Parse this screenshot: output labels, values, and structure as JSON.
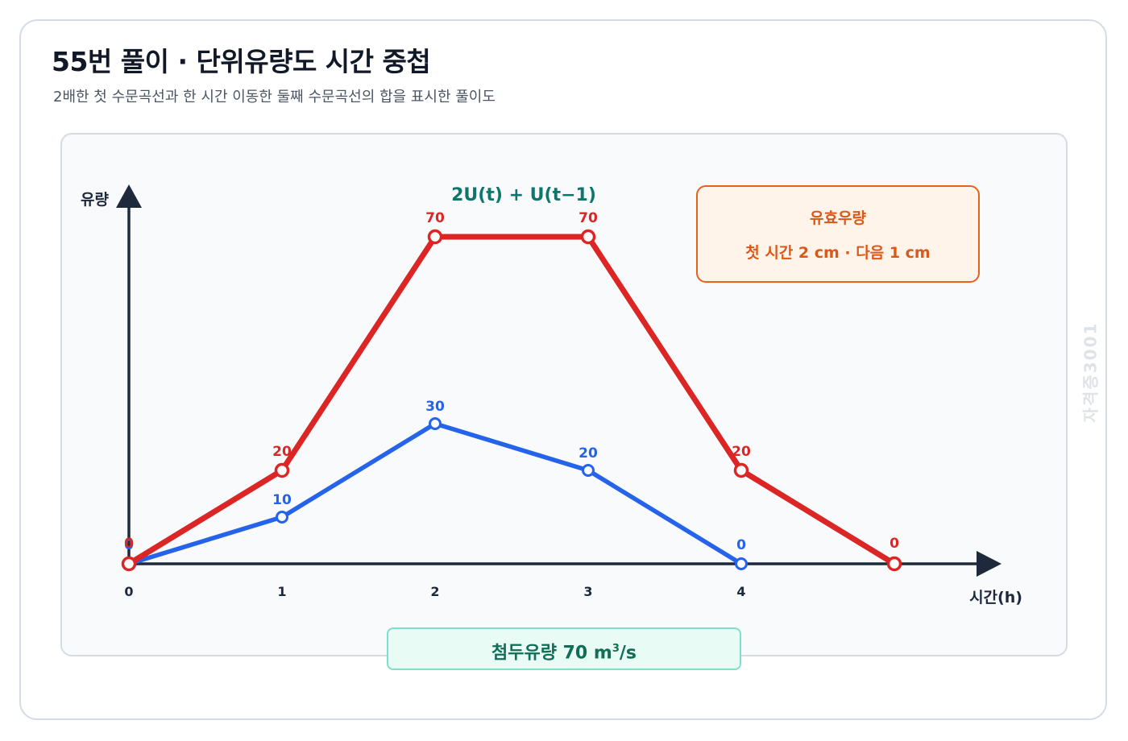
{
  "header": {
    "title": "55번 풀이 · 단위유량도 시간 중첩",
    "subtitle": "2배한 첫 수문곡선과 한 시간 이동한 둘째 수문곡선의 합을 표시한 풀이도"
  },
  "effective_box": {
    "title": "유효우량",
    "text": "첫 시간 2 cm · 다음 1 cm"
  },
  "peak_box": {
    "label": "첨두유량 70 m",
    "sup": "3",
    "unit": "/s"
  },
  "watermark": "자격증3001",
  "colors": {
    "red_series": "#dc2626",
    "blue_series": "#2563eb",
    "axis": "#1e293b",
    "formula": "#0f766e",
    "accent_orange": "#e8601c",
    "peak_teal": "#0f6e56"
  },
  "chart_data": {
    "type": "line",
    "xlabel": "시간(h)",
    "ylabel": "유량",
    "annotation": "2U(t) + U(t−1)",
    "x_tick_labels": [
      "0",
      "1",
      "2",
      "3",
      "4"
    ],
    "xlim": [
      0,
      5
    ],
    "ylim": [
      0,
      70
    ],
    "grid": false,
    "series": [
      {
        "color": "#2563eb",
        "x": [
          0,
          1,
          2,
          3,
          4
        ],
        "values": [
          0,
          10,
          30,
          20,
          0
        ],
        "labels": [
          "0",
          "10",
          "30",
          "20",
          "0"
        ]
      },
      {
        "color": "#dc2626",
        "x": [
          0,
          1,
          2,
          3,
          4,
          5
        ],
        "values": [
          0,
          20,
          70,
          70,
          20,
          0
        ],
        "labels": [
          "0",
          "20",
          "70",
          "70",
          "20",
          "0"
        ]
      }
    ]
  }
}
